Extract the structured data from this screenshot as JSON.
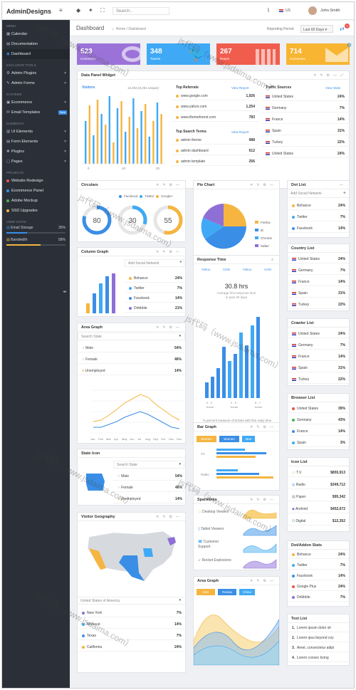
{
  "brand": {
    "name": "AdminDesigns"
  },
  "topbar": {
    "search_placeholder": "Search...",
    "lang": "US",
    "user": "John.Smith"
  },
  "sidebar": {
    "menu_header": "MENU",
    "menu": [
      {
        "label": "Calendar"
      },
      {
        "label": "Documentation"
      },
      {
        "label": "Dashboard"
      }
    ],
    "tools_header": "EXCLUSIVE TOOLS",
    "tools": [
      {
        "label": "Admin Plugins"
      },
      {
        "label": "Admin Forms"
      }
    ],
    "systems_header": "SYSTEMS",
    "systems": [
      {
        "label": "Ecommerce"
      },
      {
        "label": "Email Templates",
        "badge": "New"
      }
    ],
    "elements_header": "ELEMENTS",
    "elements": [
      {
        "label": "UI Elements"
      },
      {
        "label": "Form Elements"
      },
      {
        "label": "Plugins"
      },
      {
        "label": "Pages"
      }
    ],
    "projects_header": "PROJECTS",
    "projects": [
      {
        "label": "Website Redesign",
        "color": "#e8554e"
      },
      {
        "label": "Ecommerce Panel",
        "color": "#3a8ee6"
      },
      {
        "label": "Adobe Mockup",
        "color": "#4caf50"
      },
      {
        "label": "SSD Upgrades",
        "color": "#f5b540"
      }
    ],
    "stats_header": "USER STATS",
    "stats": [
      {
        "label": "Email Storage",
        "value": "35%",
        "pct": 35,
        "color": "#3a8ee6"
      },
      {
        "label": "Bandwidth",
        "value": "58%",
        "pct": 58,
        "color": "#f5b540"
      }
    ]
  },
  "page": {
    "title": "Dashboard",
    "crumb_home": "Home",
    "crumb_current": "Dashboard",
    "period_label": "Reporting Period",
    "period_value": "Last 60 Days",
    "notif": "3"
  },
  "stats": [
    {
      "value": "523",
      "label": "Comments",
      "color": "#9b73d8"
    },
    {
      "value": "348",
      "label": "Tweets",
      "color": "#3fa9f5"
    },
    {
      "value": "267",
      "label": "Reach",
      "color": "#f05d4d"
    },
    {
      "value": "714",
      "label": "Comments",
      "color": "#f7b531"
    }
  ],
  "data_panel": {
    "title": "Data Panel Widget",
    "visitors_label": "Visitors",
    "visitors_count": "13,253 (8,251 unique)",
    "x_ticks": [
      "0",
      "10",
      "20"
    ],
    "referrals_title": "Top Referrals",
    "view_report": "View Report",
    "referrals": [
      {
        "site": "www.google.com",
        "value": "1,926"
      },
      {
        "site": "www.yahoo.com",
        "value": "1,254"
      },
      {
        "site": "www.themeforest.com",
        "value": "783"
      }
    ],
    "search_title": "Top Search Terms",
    "search_terms": [
      {
        "term": "admin theme",
        "value": "988"
      },
      {
        "term": "admin dashboard",
        "value": "612"
      },
      {
        "term": "admin template",
        "value": "256"
      }
    ],
    "traffic_title": "Traffic Sources",
    "view_stats": "View Stats",
    "traffic": [
      {
        "country": "United States",
        "value": "24%"
      },
      {
        "country": "Germany",
        "value": "7%"
      },
      {
        "country": "France",
        "value": "14%"
      },
      {
        "country": "Spain",
        "value": "31%"
      },
      {
        "country": "Turkey",
        "value": "22%"
      },
      {
        "country": "United States",
        "value": "24%"
      }
    ]
  },
  "circulars": {
    "title": "Circulars",
    "legend": [
      "Facebook",
      "Twitter",
      "Google+"
    ],
    "values": [
      "80",
      "30",
      "55"
    ]
  },
  "pie": {
    "title": "Pie Chart",
    "legend": [
      "Firefox",
      "IE",
      "Chrome",
      "Safari"
    ]
  },
  "dot_list": {
    "title": "Dot List",
    "input": "Add Social Network",
    "items": [
      {
        "label": "Behance",
        "value": "24%",
        "color": "#f5b540"
      },
      {
        "label": "Twitter",
        "value": "7%",
        "color": "#3fa9f5"
      },
      {
        "label": "Facebook",
        "value": "14%",
        "color": "#3a8ee6"
      }
    ]
  },
  "column_graph": {
    "title": "Column Graph",
    "input": "Add Social Network",
    "items": [
      {
        "label": "Behance",
        "value": "24%"
      },
      {
        "label": "Twitter",
        "value": "7%"
      },
      {
        "label": "Facebook",
        "value": "14%"
      },
      {
        "label": "Dribbble",
        "value": "21%"
      }
    ]
  },
  "response_time": {
    "title": "Response Time",
    "tabs": [
      "Yahoo",
      "CNN",
      "Yahoo",
      "CNN"
    ],
    "value": "30.8 hrs",
    "desc1": "Average first response time",
    "desc2": "in past 30 days",
    "x_labels": [
      "0 - 2",
      "2 - 5",
      "5 - 7"
    ],
    "x_sub": [
      "hours",
      "hours",
      "hours"
    ],
    "footer": "% percent measure of tickets with first reply time"
  },
  "country_list": {
    "title": "Country List",
    "items": [
      {
        "label": "United States",
        "value": "24%"
      },
      {
        "label": "Germany",
        "value": "7%"
      },
      {
        "label": "France",
        "value": "14%"
      },
      {
        "label": "Spain",
        "value": "31%"
      },
      {
        "label": "Turkey",
        "value": "22%"
      }
    ]
  },
  "area_graph": {
    "title": "Area Graph",
    "input": "Search State",
    "items": [
      {
        "label": "Male",
        "value": "54%"
      },
      {
        "label": "Female",
        "value": "46%"
      },
      {
        "label": "Unemployed",
        "value": "14%"
      }
    ],
    "months": [
      "Jan",
      "Feb",
      "Mar",
      "Apr",
      "May",
      "Jun",
      "Jul",
      "Aug",
      "Sep",
      "Oct",
      "Nov",
      "Dec"
    ]
  },
  "crawler_list": {
    "title": "Crawler List",
    "items": [
      {
        "label": "United States",
        "value": "24%"
      },
      {
        "label": "Germany",
        "value": "7%"
      },
      {
        "label": "France",
        "value": "14%"
      },
      {
        "label": "Spain",
        "value": "31%"
      },
      {
        "label": "Turkey",
        "value": "22%"
      }
    ]
  },
  "browser_list": {
    "title": "Browser List",
    "items": [
      {
        "label": "United States",
        "value": "39%"
      },
      {
        "label": "Germany",
        "value": "43%"
      },
      {
        "label": "France",
        "value": "14%"
      },
      {
        "label": "Spain",
        "value": "3%"
      }
    ]
  },
  "bar_graph": {
    "title": "Bar Graph",
    "tabs": [
      "Women",
      "Women",
      "Men"
    ],
    "labels": [
      "TV",
      "Radio"
    ]
  },
  "state_icon": {
    "title": "State Icon",
    "input": "Search State",
    "items": [
      {
        "label": "Male",
        "value": "54%"
      },
      {
        "label": "Female",
        "value": "46%"
      },
      {
        "label": "Unemployed",
        "value": "14%"
      }
    ]
  },
  "icon_list": {
    "title": "Icon List",
    "items": [
      {
        "label": "T.V.",
        "value": "$855,913"
      },
      {
        "label": "Radio",
        "value": "$349,712"
      },
      {
        "label": "Paper",
        "value": "$95,342"
      },
      {
        "label": "Android",
        "value": "$452,672"
      },
      {
        "label": "Digital",
        "value": "$12,352"
      }
    ]
  },
  "sparklines": {
    "title": "Sparklines",
    "items": [
      "Desktop Viewers",
      "Tablet Viewers",
      "Customer Support",
      "Rocket Explosions"
    ]
  },
  "visitor_geo": {
    "title": "Visitor Geography",
    "select": "United States of America",
    "items": [
      {
        "label": "New York",
        "value": "7%"
      },
      {
        "label": "Missouri",
        "value": "14%"
      },
      {
        "label": "Texas",
        "value": "7%"
      },
      {
        "label": "California",
        "value": "24%"
      }
    ]
  },
  "dot_addon": {
    "title": "Dot/Addon Stats",
    "items": [
      {
        "label": "Behance",
        "value": "24%"
      },
      {
        "label": "Twitter",
        "value": "7%"
      },
      {
        "label": "Facebook",
        "value": "14%"
      },
      {
        "label": "Google Plus",
        "value": "24%"
      },
      {
        "label": "Dribbble",
        "value": "7%"
      }
    ]
  },
  "area_graph2": {
    "title": "Area Graph",
    "tabs": [
      "USA",
      "Russia",
      "China"
    ]
  },
  "text_list": {
    "title": "Text List",
    "items": [
      "Lorem ipsum dolor sit",
      "Lorem ipsu beyond coy",
      "Amet, consectetur adipi",
      "Lorem consec bcing"
    ]
  },
  "watermark": "js代码（www.jsdaima.com）"
}
